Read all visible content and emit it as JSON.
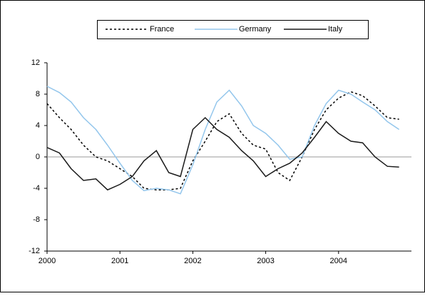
{
  "chart_data": {
    "type": "line",
    "x": [
      2000,
      2000.17,
      2000.33,
      2000.5,
      2000.67,
      2000.83,
      2001,
      2001.17,
      2001.33,
      2001.5,
      2001.67,
      2001.83,
      2002,
      2002.17,
      2002.33,
      2002.5,
      2002.67,
      2002.83,
      2003,
      2003.17,
      2003.33,
      2003.5,
      2003.67,
      2003.83,
      2004,
      2004.17,
      2004.33,
      2004.5,
      2004.67,
      2004.83
    ],
    "series": [
      {
        "name": "France",
        "color": "#000000",
        "dash": "3,3",
        "values": [
          6.8,
          5,
          3.5,
          1.5,
          0,
          -0.5,
          -1.5,
          -2.5,
          -4,
          -4.2,
          -4.2,
          -4,
          -0.5,
          2,
          4.5,
          5.5,
          3,
          1.5,
          1,
          -2,
          -3,
          0,
          3.5,
          6,
          7.5,
          8.3,
          7.8,
          6.5,
          5,
          4.8
        ]
      },
      {
        "name": "Germany",
        "color": "#93c6ec",
        "dash": "none",
        "values": [
          9,
          8.2,
          7,
          5,
          3.5,
          1.5,
          -0.8,
          -3,
          -4.3,
          -4,
          -4.2,
          -4.7,
          -1,
          3.5,
          7,
          8.5,
          6.5,
          4,
          3,
          1.5,
          -0.3,
          0,
          4,
          6.8,
          8.5,
          8,
          7,
          6,
          4.5,
          3.5
        ]
      },
      {
        "name": "Italy",
        "color": "#1a1a1a",
        "dash": "none",
        "values": [
          1.2,
          0.5,
          -1.5,
          -3,
          -2.8,
          -4.2,
          -3.5,
          -2.5,
          -0.5,
          0.8,
          -2,
          -2.5,
          3.5,
          5,
          3.5,
          2.5,
          0.8,
          -0.5,
          -2.5,
          -1.5,
          -0.8,
          0.5,
          2.5,
          4.5,
          3,
          2,
          1.8,
          0,
          -1.2,
          -1.3
        ]
      }
    ],
    "xlim": [
      2000,
      2005
    ],
    "xticks": [
      2000,
      2001,
      2002,
      2003,
      2004
    ],
    "ylim": [
      -12,
      12
    ],
    "yticks": [
      -12,
      -8,
      -4,
      0,
      4,
      8,
      12
    ],
    "zero_line": true
  }
}
